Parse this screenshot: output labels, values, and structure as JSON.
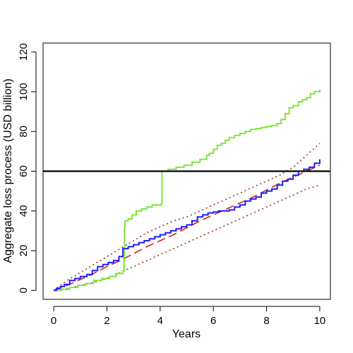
{
  "chart_data": {
    "type": "line",
    "title": "",
    "xlabel": "Years",
    "ylabel": "Aggregate loss process (USD billion)",
    "xlim": [
      -0.4,
      10.4
    ],
    "ylim": [
      -4.5,
      124.5
    ],
    "xticks": [
      0,
      2,
      4,
      6,
      8,
      10
    ],
    "yticks": [
      0,
      20,
      40,
      60,
      80,
      100,
      120
    ],
    "grid": false,
    "legend": "none",
    "hlines": [
      {
        "y": 60,
        "color": "#000000"
      }
    ],
    "series": [
      {
        "color": "#7ee63a",
        "style": "solid",
        "step": true,
        "x": [
          0,
          0.3,
          0.6,
          0.9,
          1.2,
          1.5,
          1.8,
          2.1,
          2.35,
          2.6,
          2.64,
          2.66,
          2.68,
          2.8,
          2.95,
          3.1,
          3.3,
          3.5,
          3.7,
          4.05,
          4.07,
          4.3,
          4.6,
          4.9,
          5.2,
          5.5,
          5.75,
          5.85,
          6.0,
          6.15,
          6.3,
          6.45,
          6.6,
          6.8,
          7.0,
          7.2,
          7.4,
          7.6,
          7.8,
          8.0,
          8.2,
          8.4,
          8.55,
          8.7,
          8.85,
          9.0,
          9.2,
          9.35,
          9.5,
          9.65,
          9.8,
          10.0
        ],
        "y": [
          0,
          0.5,
          1.5,
          2.5,
          3.5,
          5,
          6,
          7,
          8.5,
          10,
          15,
          32,
          35,
          36,
          38,
          40,
          41,
          42,
          43,
          44,
          60,
          61,
          62,
          63,
          64.5,
          66,
          68,
          69,
          71,
          73,
          74,
          75.5,
          77,
          78,
          79,
          80,
          81,
          81.5,
          82,
          82.5,
          83,
          84,
          86,
          89,
          92,
          93,
          95,
          96,
          97,
          99,
          100,
          101
        ]
      },
      {
        "color": "#1f1ff5",
        "style": "solid",
        "step": true,
        "x": [
          0,
          0.1,
          0.25,
          0.4,
          0.6,
          0.8,
          1.0,
          1.25,
          1.45,
          1.65,
          1.85,
          2.05,
          2.25,
          2.45,
          2.6,
          2.8,
          3.0,
          3.2,
          3.4,
          3.6,
          3.8,
          4.0,
          4.2,
          4.4,
          4.6,
          4.8,
          5.0,
          5.2,
          5.4,
          5.6,
          5.8,
          6.0,
          6.2,
          6.4,
          6.6,
          6.8,
          7.0,
          7.2,
          7.4,
          7.6,
          7.8,
          8.0,
          8.2,
          8.4,
          8.6,
          8.8,
          9.0,
          9.2,
          9.4,
          9.6,
          9.8,
          10.0
        ],
        "y": [
          0,
          1,
          2,
          3,
          5,
          6,
          7,
          8,
          10,
          12,
          13,
          14,
          15,
          17,
          21,
          22,
          23,
          24,
          25,
          26,
          27,
          28,
          29,
          30,
          31,
          32,
          33,
          35,
          37,
          38,
          39,
          39.5,
          40,
          40,
          40.5,
          42,
          43,
          45,
          46,
          47,
          49,
          50,
          51,
          53,
          55,
          56,
          58,
          60,
          61,
          62,
          64,
          66
        ]
      }
    ],
    "reference_lines": [
      {
        "color": "#d42020",
        "style": "dashed",
        "x": [
          0,
          0.5,
          1.0,
          1.5,
          2.0,
          2.5,
          3.0,
          3.5,
          4.0,
          4.5,
          5.0,
          5.5,
          6.0,
          6.5,
          7.0,
          7.5,
          8.0,
          8.5,
          9.0,
          9.5,
          10.0
        ],
        "y": [
          0,
          2.5,
          5.5,
          8.5,
          12,
          15,
          18.5,
          22,
          25,
          28,
          31.5,
          35,
          38,
          41,
          44,
          47,
          50.5,
          54,
          57,
          60,
          63
        ]
      },
      {
        "color": "#a0302a",
        "style": "dotted",
        "x": [
          0,
          0.5,
          1.0,
          1.5,
          2.0,
          2.5,
          3.0,
          3.5,
          4.0,
          4.5,
          5.0,
          5.5,
          6.0,
          6.5,
          7.0,
          7.5,
          8.0,
          8.5,
          9.0,
          9.5,
          10.0
        ],
        "y": [
          0,
          5,
          9,
          13,
          17,
          21,
          25,
          29,
          32,
          35,
          37,
          40,
          43,
          46,
          49,
          52,
          55,
          58,
          62,
          68,
          74
        ]
      },
      {
        "color": "#a0302a",
        "style": "dotted",
        "x": [
          0,
          0.5,
          1.0,
          1.5,
          2.0,
          2.5,
          3.0,
          3.5,
          4.0,
          4.5,
          5.0,
          5.5,
          6.0,
          6.5,
          7.0,
          7.5,
          8.0,
          8.5,
          9.0,
          9.5,
          10.0
        ],
        "y": [
          0,
          1,
          2.5,
          4,
          6,
          9,
          12,
          15,
          18,
          21,
          24,
          27,
          30,
          33,
          36,
          39,
          42,
          45,
          48,
          51,
          53
        ]
      }
    ]
  }
}
